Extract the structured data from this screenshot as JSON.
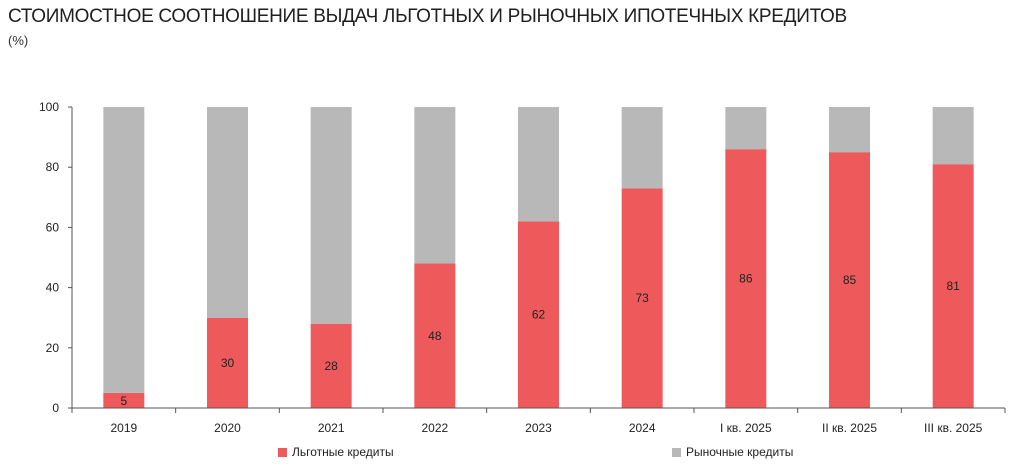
{
  "chart_data": {
    "type": "bar",
    "stacked": true,
    "title": "СТОИМОСТНОЕ СООТНОШЕНИЕ ВЫДАЧ ЛЬГОТНЫХ И РЫНОЧНЫХ ИПОТЕЧНЫХ КРЕДИТОВ",
    "subtitle": "(%)",
    "categories": [
      "2019",
      "2020",
      "2021",
      "2022",
      "2023",
      "2024",
      "I кв. 2025",
      "II кв. 2025",
      "III кв. 2025"
    ],
    "series": [
      {
        "name": "Льготные кредиты",
        "color": "#ee5a5c",
        "values": [
          5,
          30,
          28,
          48,
          62,
          73,
          86,
          85,
          81
        ],
        "labels": [
          "5",
          "30",
          "28",
          "48",
          "62",
          "73",
          "86",
          "85",
          "81"
        ]
      },
      {
        "name": "Рыночные кредиты",
        "color": "#b8b8b9",
        "values": [
          95,
          70,
          72,
          52,
          38,
          27,
          14,
          15,
          19
        ]
      }
    ],
    "ylim": [
      0,
      100
    ],
    "yticks": [
      "0",
      "20",
      "40",
      "60",
      "80",
      "100"
    ],
    "grid": false,
    "legend_position": "bottom"
  }
}
